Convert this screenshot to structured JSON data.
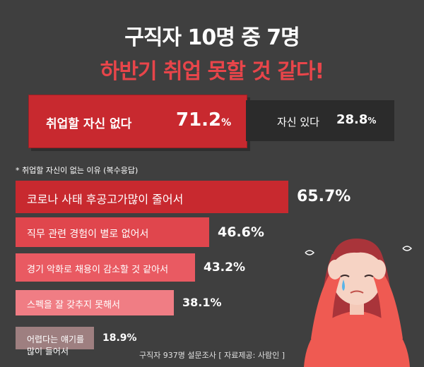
{
  "title_line1": "구직자 10명 중 7명",
  "title_line2": "하반기 취업 못할 것 같다!",
  "summary": {
    "no": {
      "label": "취업할 자신 없다",
      "value": "71.2",
      "unit": "%"
    },
    "yes": {
      "label": "자신 있다",
      "value": "28.8",
      "unit": "%"
    }
  },
  "subheading": "* 취업할 자신이 없는 이유 (복수응답)",
  "chart_data": {
    "type": "bar",
    "orientation": "horizontal",
    "categories": [
      "코로나 사태 후공고가많이 줄어서",
      "직무 관련 경험이 별로 없어서",
      "경기 악화로 채용이 감소할 것 같아서",
      "스펙을 잘 갖추지 못해서",
      "어렵다는 얘기를 많이 들어서"
    ],
    "values": [
      65.7,
      46.6,
      43.2,
      38.1,
      18.9
    ],
    "value_labels": [
      "65.7%",
      "46.6%",
      "43.2%",
      "38.1%",
      "18.9%"
    ],
    "colors": [
      "#c8292f",
      "#e0464d",
      "#e95a62",
      "#f07d84",
      "#9e7f80"
    ],
    "xlim": [
      0,
      65.7
    ]
  },
  "footer": "구직자 937명 설문조사  [ 자료제공: 사람인 ]"
}
